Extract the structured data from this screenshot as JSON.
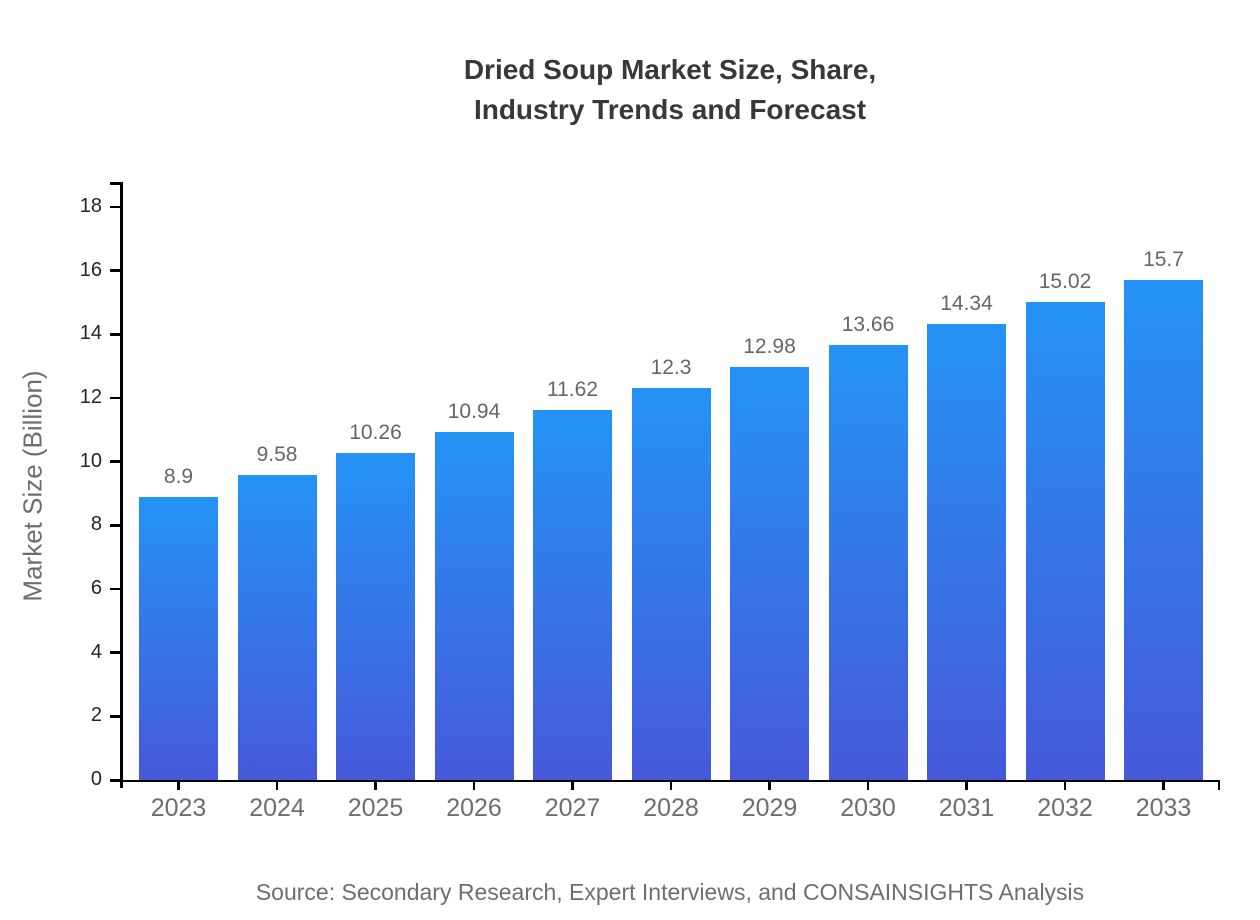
{
  "title": {
    "line1": "Dried Soup Market Size, Share,",
    "line2": "Industry Trends and Forecast"
  },
  "footer": {
    "source": "Source: Secondary Research, Expert Interviews, and CONSAINSIGHTS Analysis"
  },
  "chart_data": {
    "type": "bar",
    "title": "Dried Soup Market Size, Share, Industry Trends and Forecast",
    "categories": [
      "2023",
      "2024",
      "2025",
      "2026",
      "2027",
      "2028",
      "2029",
      "2030",
      "2031",
      "2032",
      "2033"
    ],
    "values": [
      8.9,
      9.58,
      10.26,
      10.94,
      11.62,
      12.3,
      12.98,
      13.66,
      14.34,
      15.02,
      15.7
    ],
    "value_labels": [
      "8.9",
      "9.58",
      "10.26",
      "10.94",
      "11.62",
      "12.3",
      "12.98",
      "13.66",
      "14.34",
      "15.02",
      "15.7"
    ],
    "xlabel": "",
    "ylabel": "Market Size (Billion)",
    "ylim": [
      0,
      18
    ],
    "yticks": [
      0,
      2,
      4,
      6,
      8,
      10,
      12,
      14,
      16,
      18
    ],
    "grid": false,
    "legend": null,
    "colors": {
      "bar_gradient_top": "#2493f5",
      "bar_gradient_bottom": "#4659da",
      "axis": "#000000",
      "y_tick_label": "#262626",
      "x_tick_label": "#6e6e6e",
      "value_label": "#666666",
      "title": "#383838",
      "source": "#6e6e6e"
    }
  }
}
